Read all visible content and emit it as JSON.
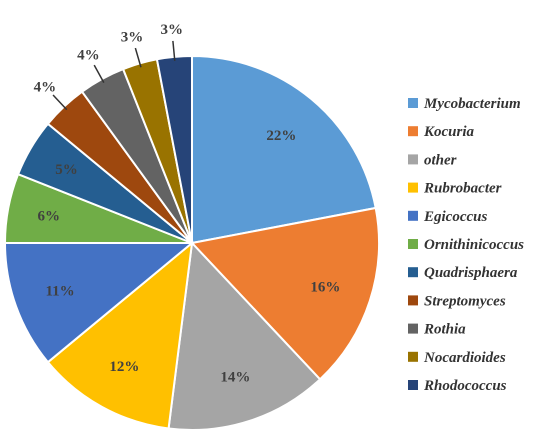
{
  "chart_data": {
    "type": "pie",
    "start": "12 o'clock",
    "direction": "clockwise",
    "legend_position": "right",
    "slices": [
      {
        "label": "Mycobacterium",
        "value": 22,
        "value_label": "22%",
        "color": "#5B9BD5"
      },
      {
        "label": "Kocuria",
        "value": 16,
        "value_label": "16%",
        "color": "#ED7D31"
      },
      {
        "label": "other",
        "value": 14,
        "value_label": "14%",
        "color": "#A5A5A5"
      },
      {
        "label": "Rubrobacter",
        "value": 12,
        "value_label": "12%",
        "color": "#FFC000"
      },
      {
        "label": "Egicoccus",
        "value": 11,
        "value_label": "11%",
        "color": "#4472C4"
      },
      {
        "label": "Ornithinicoccus",
        "value": 6,
        "value_label": "6%",
        "color": "#70AD47"
      },
      {
        "label": "Quadrisphaera",
        "value": 5,
        "value_label": "5%",
        "color": "#255E91"
      },
      {
        "label": "Streptomyces",
        "value": 4,
        "value_label": "4%",
        "color": "#9E480E"
      },
      {
        "label": "Rothia",
        "value": 4,
        "value_label": "4%",
        "color": "#636363"
      },
      {
        "label": "Nocardioides",
        "value": 3,
        "value_label": "3%",
        "color": "#997300"
      },
      {
        "label": "Rhodococcus",
        "value": 3,
        "value_label": "3%",
        "color": "#264478"
      }
    ]
  }
}
